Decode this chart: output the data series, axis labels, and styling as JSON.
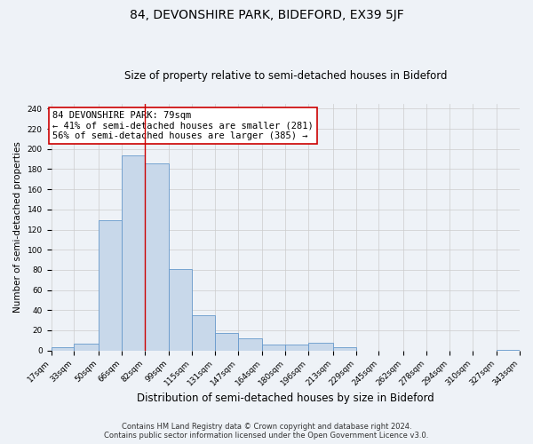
{
  "title_main": "84, DEVONSHIRE PARK, BIDEFORD, EX39 5JF",
  "title_sub": "Size of property relative to semi-detached houses in Bideford",
  "xlabel": "Distribution of semi-detached houses by size in Bideford",
  "ylabel": "Number of semi-detached properties",
  "bin_edges": [
    17,
    33,
    50,
    66,
    82,
    99,
    115,
    131,
    147,
    164,
    180,
    196,
    213,
    229,
    245,
    262,
    278,
    294,
    310,
    327,
    343
  ],
  "bar_heights": [
    3,
    7,
    129,
    194,
    186,
    81,
    35,
    17,
    12,
    6,
    6,
    8,
    3,
    0,
    0,
    0,
    0,
    0,
    0,
    1
  ],
  "bar_color": "#c8d8ea",
  "bar_edgecolor": "#6699cc",
  "vline_x": 82,
  "vline_color": "#cc0000",
  "annotation_title": "84 DEVONSHIRE PARK: 79sqm",
  "annotation_line1": "← 41% of semi-detached houses are smaller (281)",
  "annotation_line2": "56% of semi-detached houses are larger (385) →",
  "annotation_box_color": "#ffffff",
  "annotation_box_edgecolor": "#cc0000",
  "ylim": [
    0,
    245
  ],
  "yticks": [
    0,
    20,
    40,
    60,
    80,
    100,
    120,
    140,
    160,
    180,
    200,
    220,
    240
  ],
  "tick_labels": [
    "17sqm",
    "33sqm",
    "50sqm",
    "66sqm",
    "82sqm",
    "99sqm",
    "115sqm",
    "131sqm",
    "147sqm",
    "164sqm",
    "180sqm",
    "196sqm",
    "213sqm",
    "229sqm",
    "245sqm",
    "262sqm",
    "278sqm",
    "294sqm",
    "310sqm",
    "327sqm",
    "343sqm"
  ],
  "footer1": "Contains HM Land Registry data © Crown copyright and database right 2024.",
  "footer2": "Contains public sector information licensed under the Open Government Licence v3.0.",
  "background_color": "#eef2f7",
  "grid_color": "#cccccc",
  "title_main_fontsize": 10,
  "title_sub_fontsize": 8.5,
  "xlabel_fontsize": 8.5,
  "ylabel_fontsize": 7.5,
  "tick_fontsize": 6.5,
  "annotation_fontsize": 7.5,
  "footer_fontsize": 6.0
}
